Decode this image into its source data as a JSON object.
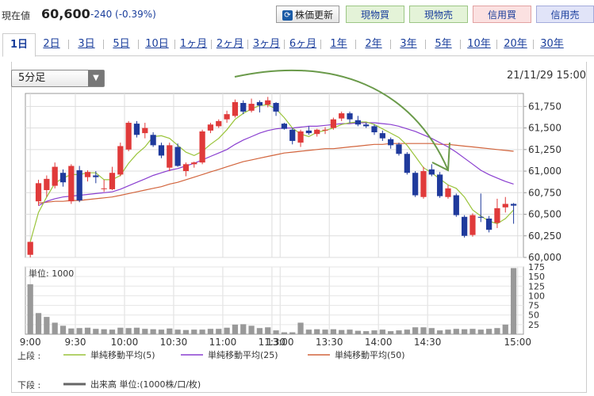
{
  "header": {
    "price_label": "現在値",
    "price_value": "60,600",
    "price_change": "-240 (-0.39%)",
    "refresh_label": "株価更新",
    "refresh_icon": "refresh-icon",
    "buy_cash": "現物買",
    "sell_cash": "現物売",
    "buy_margin": "信用買",
    "sell_margin": "信用売"
  },
  "tabs": [
    "1日",
    "2日",
    "3日",
    "5日",
    "10日",
    "1ヶ月",
    "2ヶ月",
    "3ヶ月",
    "6ヶ月",
    "1年",
    "2年",
    "3年",
    "5年",
    "10年",
    "20年",
    "30年"
  ],
  "active_tab": "1日",
  "interval_select": "5分足",
  "datetime": "21/11/29 15:00",
  "chart_data": {
    "type": "candlestick",
    "price_axis": {
      "ylim": [
        60000,
        61900
      ],
      "ticks": [
        "61,750",
        "61,500",
        "61,250",
        "61,000",
        "60,750",
        "60,500",
        "60,250",
        "60,000"
      ]
    },
    "volume_axis": {
      "label": "単位: 1000",
      "ylim": [
        0,
        175
      ],
      "ticks": [
        "175",
        "150",
        "125",
        "100",
        "75",
        "50",
        "25"
      ]
    },
    "x_ticks": [
      "9:00",
      "9:30",
      "10:00",
      "10:30",
      "11:00",
      "11:30",
      "13:00",
      "13:30",
      "14:00",
      "14:30",
      "15:00"
    ],
    "candles": [
      {
        "o": 60030,
        "h": 60180,
        "l": 60000,
        "c": 60180
      },
      {
        "o": 60650,
        "h": 60900,
        "l": 60600,
        "c": 60860
      },
      {
        "o": 60780,
        "h": 60950,
        "l": 60700,
        "c": 60910
      },
      {
        "o": 60830,
        "h": 61100,
        "l": 60800,
        "c": 61050
      },
      {
        "o": 60980,
        "h": 61020,
        "l": 60820,
        "c": 60870
      },
      {
        "o": 60650,
        "h": 61080,
        "l": 60620,
        "c": 61060
      },
      {
        "o": 61010,
        "h": 61060,
        "l": 60640,
        "c": 60660
      },
      {
        "o": 60930,
        "h": 61010,
        "l": 60880,
        "c": 60990
      },
      {
        "o": 60950,
        "h": 61000,
        "l": 60860,
        "c": 60930
      },
      {
        "o": 60800,
        "h": 60900,
        "l": 60760,
        "c": 60800
      },
      {
        "o": 60790,
        "h": 61050,
        "l": 60780,
        "c": 60980
      },
      {
        "o": 60960,
        "h": 61330,
        "l": 60940,
        "c": 61290
      },
      {
        "o": 61250,
        "h": 61580,
        "l": 61230,
        "c": 61560
      },
      {
        "o": 61550,
        "h": 61580,
        "l": 61390,
        "c": 61420
      },
      {
        "o": 61440,
        "h": 61560,
        "l": 61380,
        "c": 61500
      },
      {
        "o": 61420,
        "h": 61450,
        "l": 61280,
        "c": 61300
      },
      {
        "o": 61300,
        "h": 61330,
        "l": 61150,
        "c": 61180
      },
      {
        "o": 61040,
        "h": 61330,
        "l": 61000,
        "c": 61300
      },
      {
        "o": 61280,
        "h": 61320,
        "l": 61050,
        "c": 61060
      },
      {
        "o": 61000,
        "h": 61100,
        "l": 60940,
        "c": 61080
      },
      {
        "o": 61080,
        "h": 61110,
        "l": 61040,
        "c": 61100
      },
      {
        "o": 61100,
        "h": 61480,
        "l": 61080,
        "c": 61460
      },
      {
        "o": 61470,
        "h": 61560,
        "l": 61440,
        "c": 61540
      },
      {
        "o": 61520,
        "h": 61600,
        "l": 61500,
        "c": 61580
      },
      {
        "o": 61600,
        "h": 61700,
        "l": 61560,
        "c": 61660
      },
      {
        "o": 61640,
        "h": 61830,
        "l": 61620,
        "c": 61800
      },
      {
        "o": 61790,
        "h": 61820,
        "l": 61660,
        "c": 61690
      },
      {
        "o": 61700,
        "h": 61840,
        "l": 61680,
        "c": 61780
      },
      {
        "o": 61800,
        "h": 61820,
        "l": 61680,
        "c": 61760
      },
      {
        "o": 61770,
        "h": 61860,
        "l": 61740,
        "c": 61820
      },
      {
        "o": 61790,
        "h": 61800,
        "l": 61640,
        "c": 61690
      },
      {
        "o": 61550,
        "h": 61560,
        "l": 61480,
        "c": 61490
      },
      {
        "o": 61480,
        "h": 61500,
        "l": 61310,
        "c": 61350
      },
      {
        "o": 61330,
        "h": 61480,
        "l": 61280,
        "c": 61460
      },
      {
        "o": 61470,
        "h": 61520,
        "l": 61420,
        "c": 61440
      },
      {
        "o": 61430,
        "h": 61490,
        "l": 61400,
        "c": 61480
      },
      {
        "o": 61470,
        "h": 61510,
        "l": 61430,
        "c": 61480
      },
      {
        "o": 61500,
        "h": 61620,
        "l": 61480,
        "c": 61600
      },
      {
        "o": 61610,
        "h": 61690,
        "l": 61580,
        "c": 61670
      },
      {
        "o": 61670,
        "h": 61690,
        "l": 61560,
        "c": 61600
      },
      {
        "o": 61590,
        "h": 61640,
        "l": 61520,
        "c": 61540
      },
      {
        "o": 61540,
        "h": 61560,
        "l": 61500,
        "c": 61520
      },
      {
        "o": 61520,
        "h": 61540,
        "l": 61420,
        "c": 61450
      },
      {
        "o": 61440,
        "h": 61470,
        "l": 61350,
        "c": 61380
      },
      {
        "o": 61370,
        "h": 61390,
        "l": 61260,
        "c": 61300
      },
      {
        "o": 61310,
        "h": 61330,
        "l": 61180,
        "c": 61200
      },
      {
        "o": 61200,
        "h": 61220,
        "l": 60960,
        "c": 60980
      },
      {
        "o": 60980,
        "h": 61000,
        "l": 60700,
        "c": 60720
      },
      {
        "o": 60700,
        "h": 61050,
        "l": 60680,
        "c": 61000
      },
      {
        "o": 61020,
        "h": 61080,
        "l": 60940,
        "c": 60960
      },
      {
        "o": 60960,
        "h": 60990,
        "l": 60690,
        "c": 60710
      },
      {
        "o": 60700,
        "h": 60840,
        "l": 60680,
        "c": 60800
      },
      {
        "o": 60720,
        "h": 60740,
        "l": 60470,
        "c": 60490
      },
      {
        "o": 60470,
        "h": 60490,
        "l": 60230,
        "c": 60250
      },
      {
        "o": 60260,
        "h": 60510,
        "l": 60240,
        "c": 60490
      },
      {
        "o": 60470,
        "h": 60740,
        "l": 60410,
        "c": 60460
      },
      {
        "o": 60450,
        "h": 60480,
        "l": 60290,
        "c": 60320
      },
      {
        "o": 60400,
        "h": 60680,
        "l": 60340,
        "c": 60570
      },
      {
        "o": 60580,
        "h": 60700,
        "l": 60520,
        "c": 60620
      },
      {
        "o": 60620,
        "h": 60630,
        "l": 60390,
        "c": 60600
      }
    ],
    "volume": [
      130,
      55,
      45,
      30,
      22,
      15,
      16,
      17,
      14,
      13,
      12,
      17,
      16,
      17,
      14,
      13,
      12,
      15,
      12,
      11,
      12,
      12,
      14,
      14,
      17,
      25,
      26,
      22,
      16,
      18,
      10,
      5,
      5,
      30,
      12,
      13,
      12,
      13,
      11,
      12,
      9,
      8,
      10,
      12,
      8,
      10,
      12,
      18,
      18,
      16,
      10,
      12,
      14,
      13,
      14,
      12,
      14,
      16,
      25,
      172
    ],
    "ma5": [
      60180,
      60520,
      60700,
      60860,
      60920,
      60960,
      60960,
      60980,
      60980,
      60900,
      60900,
      60950,
      61090,
      61200,
      61280,
      61400,
      61410,
      61380,
      61300,
      61220,
      61180,
      61230,
      61310,
      61380,
      61480,
      61600,
      61670,
      61720,
      61760,
      61770,
      61720,
      61620,
      61500,
      61430,
      61400,
      61450,
      61470,
      61500,
      61540,
      61560,
      61570,
      61570,
      61540,
      61490,
      61440,
      61390,
      61300,
      61170,
      61040,
      60980,
      60910,
      60840,
      60800,
      60700,
      60550,
      60480,
      60420,
      60390,
      60450,
      60550
    ],
    "ma25": [
      null,
      60600,
      60650,
      60680,
      60700,
      60710,
      60720,
      60730,
      60740,
      60750,
      60760,
      60790,
      60830,
      60870,
      60910,
      60950,
      60980,
      61010,
      61030,
      61060,
      61090,
      61130,
      61170,
      61210,
      61250,
      61310,
      61360,
      61400,
      61440,
      61470,
      61490,
      61500,
      61500,
      61510,
      61520,
      61520,
      61530,
      61540,
      61550,
      61550,
      61560,
      61560,
      61560,
      61550,
      61540,
      61520,
      61490,
      61460,
      61420,
      61380,
      61330,
      61280,
      61220,
      61150,
      61080,
      61010,
      60960,
      60920,
      60880,
      60850
    ],
    "ma50": [
      null,
      60630,
      60640,
      60650,
      60650,
      60660,
      60660,
      60670,
      60680,
      60690,
      60700,
      60720,
      60740,
      60760,
      60780,
      60800,
      60820,
      60850,
      60870,
      60900,
      60930,
      60960,
      60990,
      61020,
      61050,
      61080,
      61110,
      61130,
      61150,
      61170,
      61190,
      61210,
      61220,
      61230,
      61240,
      61250,
      61260,
      61260,
      61270,
      61280,
      61290,
      61300,
      61310,
      61310,
      61320,
      61320,
      61320,
      61320,
      61320,
      61320,
      61310,
      61310,
      61300,
      61290,
      61280,
      61270,
      61260,
      61250,
      61240,
      61230
    ],
    "legend": {
      "upper_label": "上段 :",
      "ma5": "単純移動平均(5)",
      "ma25": "単純移動平均(25)",
      "ma50": "単純移動平均(50)",
      "lower_label": "下段 :",
      "volume": "出来高 単位:(1000株/口/枚)"
    },
    "colors": {
      "up": "#e03a3a",
      "down": "#1f3a9c",
      "ma5": "#9ac43a",
      "ma25": "#8a3fd0",
      "ma50": "#d2643c",
      "volume": "#999999",
      "annotation": "#6a9a4a"
    }
  }
}
